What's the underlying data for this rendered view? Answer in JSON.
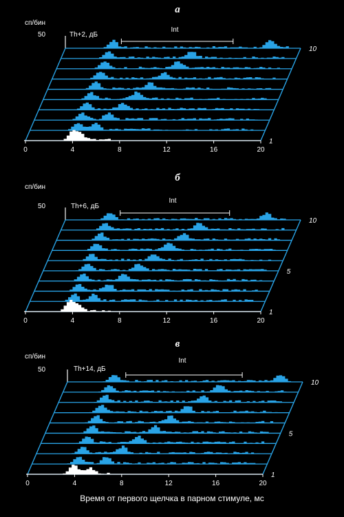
{
  "xlabel": "Время от первого щелчка в парном стимуле, мс",
  "ylabel": "сп/бин",
  "x_ticks": [
    "0",
    "4",
    "8",
    "12",
    "16",
    "20"
  ],
  "colors": {
    "background": "#000000",
    "trace": "#29a3e6",
    "first_trace": "#ffffff",
    "text": "#ffffff"
  },
  "chart_data": [
    {
      "type": "area",
      "panel": "а",
      "condition": "Th+2, дБ",
      "ylabel": "сп/бин",
      "y_tick": "50",
      "int_label": "Int",
      "xlim": [
        0,
        20
      ],
      "trace_labels": [
        "1",
        "10"
      ],
      "traces": 10,
      "first_click_ms": 3.9,
      "second_click_ms": [
        4.6,
        5.4,
        6.2,
        7.0,
        7.8,
        8.6,
        9.4,
        10.2,
        11.0,
        17.3
      ],
      "int_range_ms": [
        7.8,
        17.3
      ]
    },
    {
      "type": "area",
      "panel": "б",
      "condition": "Th+6, дБ",
      "ylabel": "сп/бин",
      "y_tick": "50",
      "int_label": "Int",
      "xlim": [
        0,
        20
      ],
      "trace_labels": [
        "1",
        "5",
        "10"
      ],
      "traces": 10,
      "first_click_ms": 3.6,
      "second_click_ms": [
        4.4,
        5.3,
        6.2,
        7.1,
        8.0,
        8.9,
        9.8,
        10.7,
        11.6,
        17.0
      ],
      "int_range_ms": [
        7.7,
        17.0
      ]
    },
    {
      "type": "area",
      "panel": "в",
      "condition": "Th+14, дБ",
      "ylabel": "сп/бин",
      "y_tick": "50",
      "int_label": "Int",
      "xlim": [
        0,
        20
      ],
      "trace_labels": [
        "1",
        "5",
        "10"
      ],
      "traces": 10,
      "first_click_ms": 3.8,
      "second_click_ms": [
        5.2,
        6.2,
        7.2,
        8.2,
        9.2,
        10.2,
        11.2,
        12.2,
        13.2,
        17.9
      ],
      "int_range_ms": [
        8.0,
        17.9
      ]
    }
  ]
}
